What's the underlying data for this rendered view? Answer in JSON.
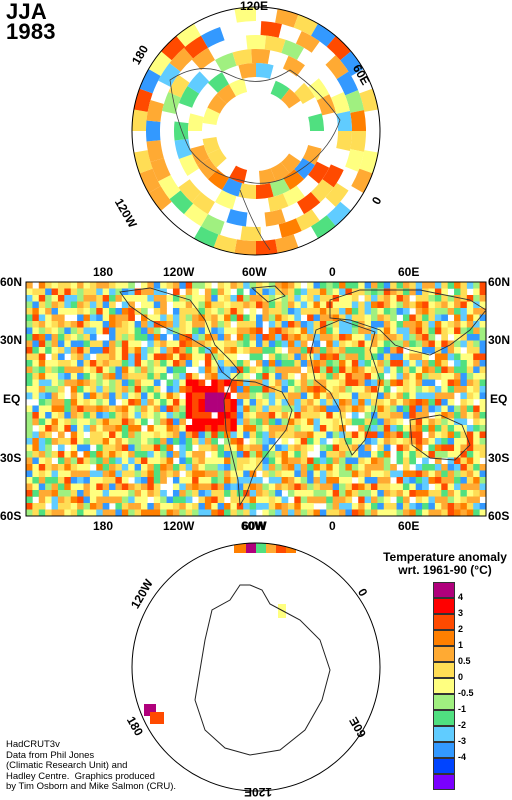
{
  "header": {
    "season": "JJA",
    "year": "1983"
  },
  "north_map": {
    "labels": {
      "top": "120E",
      "left": "180",
      "right": "60E",
      "lower_left": "120W",
      "lower_right": "0"
    }
  },
  "world_map": {
    "top_lon_labels": [
      "180",
      "120W",
      "60W",
      "0",
      "60E"
    ],
    "bottom_lon_labels": [
      "180",
      "120W",
      "60W",
      "0",
      "60E"
    ],
    "lat_labels": [
      "60N",
      "30N",
      "EQ",
      "30S",
      "60S"
    ]
  },
  "south_map": {
    "labels": {
      "top": "60W",
      "upper_left": "120W",
      "right": "0",
      "lower_left": "180",
      "lower_right": "60E",
      "bottom": "120E"
    }
  },
  "legend": {
    "title_line1": "Temperature anomaly",
    "title_line2": "wrt. 1961-90  (°C)",
    "levels": [
      "4",
      "3",
      "2",
      "1",
      "0.5",
      "0",
      "-0.5",
      "-1",
      "-2",
      "-3",
      "-4"
    ],
    "colors": [
      "#b0007c",
      "#ff0000",
      "#ff4a00",
      "#ff7f00",
      "#ffaa33",
      "#ffdd55",
      "#ffff80",
      "#a0f080",
      "#50e080",
      "#60ccff",
      "#3399ff",
      "#0044ff",
      "#7a00ff"
    ]
  },
  "credits": {
    "line1": "HadCRUT3v",
    "line2": "Data from Phil Jones",
    "line3": "(Climatic Research Unit) and",
    "line4": "Hadley Centre.  Graphics produced",
    "line5": "by Tim Osborn and Mike Salmon (CRU)."
  }
}
